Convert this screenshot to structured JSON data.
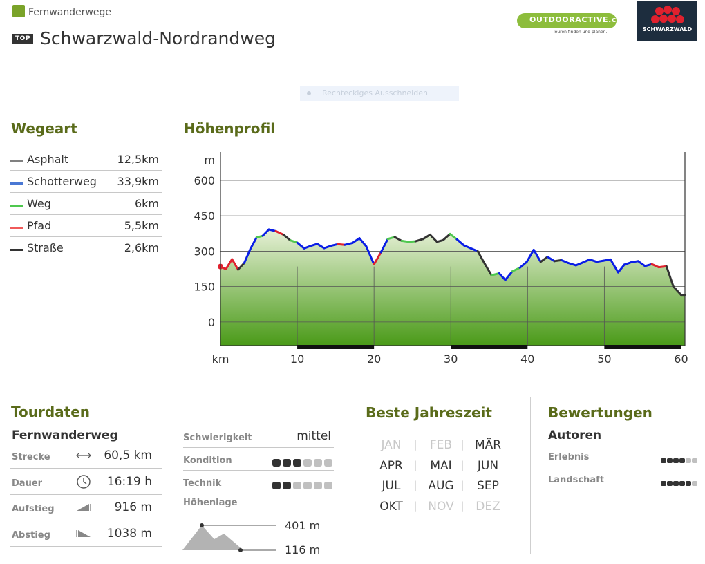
{
  "header": {
    "category": "Fernwanderwege",
    "badge": "TOP",
    "title": "Schwarzwald-Nordrandweg",
    "logo_outdooractive": "OUTDOORACTIVE.com",
    "logo_outdooractive_sub": "Touren finden und planen.",
    "logo_schwarzwald": "SCHWARZWALD",
    "ghost_toolbar": "Rechteckiges Ausschneiden"
  },
  "wegeart": {
    "title": "Wegeart",
    "items": [
      {
        "name": "Asphalt",
        "value": "12,5km",
        "color": "#808080"
      },
      {
        "name": "Schotterweg",
        "value": "33,9km",
        "color": "#4a78d4"
      },
      {
        "name": "Weg",
        "value": "6km",
        "color": "#4fc84f"
      },
      {
        "name": "Pfad",
        "value": "5,5km",
        "color": "#f05a5a"
      },
      {
        "name": "Straße",
        "value": "2,6km",
        "color": "#333333"
      }
    ]
  },
  "hoehenprofil": {
    "title": "Höhenprofil"
  },
  "chart_data": {
    "type": "area",
    "title": "Höhenprofil",
    "xlabel": "km",
    "ylabel": "m",
    "xlim": [
      0,
      60.5
    ],
    "ylim": [
      -100,
      720
    ],
    "yticks": [
      0,
      150,
      300,
      450,
      600
    ],
    "xticks": [
      10,
      20,
      30,
      40,
      50,
      60
    ],
    "grid": true,
    "fill_gradient": [
      "#e6f0d6",
      "#4a9a18"
    ],
    "x": [
      0,
      0.7,
      1.5,
      2.3,
      3.1,
      3.9,
      4.7,
      5.5,
      6.3,
      7.2,
      8.2,
      9.1,
      10,
      10.9,
      11.7,
      12.6,
      13.5,
      14.4,
      15.3,
      16.2,
      17.2,
      18.1,
      19,
      20,
      20.9,
      21.8,
      22.7,
      23.6,
      24.5,
      25.4,
      26.4,
      27.3,
      28.2,
      29,
      29.9,
      30.8,
      31.7,
      32.6,
      33.5,
      34.4,
      35.3,
      36.3,
      37.1,
      38,
      39,
      39.9,
      40.8,
      41.7,
      42.6,
      43.5,
      44.4,
      45.3,
      46.3,
      47.2,
      48.1,
      49,
      49.9,
      50.8,
      51.8,
      52.6,
      53.5,
      54.4,
      55.3,
      56.2,
      57.1,
      58.1,
      59,
      60,
      60.5
    ],
    "series": [
      {
        "values": [
          235,
          224,
          266,
          222,
          250,
          310,
          358,
          365,
          392,
          385,
          370,
          346,
          336,
          312,
          322,
          331,
          313,
          323,
          330,
          327,
          335,
          355,
          320,
          244,
          295,
          352,
          360,
          344,
          340,
          342,
          352,
          370,
          340,
          347,
          373,
          350,
          325,
          312,
          300,
          248,
          198,
          206,
          178,
          214,
          230,
          255,
          306,
          255,
          276,
          258,
          262,
          250,
          240,
          252,
          265,
          255,
          260,
          265,
          210,
          243,
          253,
          258,
          237,
          245,
          232,
          236,
          150,
          115,
          115
        ],
        "segment_colors": [
          "#e0212e",
          "#e0212e",
          "#e0212e",
          "#333333",
          "#0a1ee6",
          "#0a1ee6",
          "#4fc84f",
          "#0a1ee6",
          "#0a1ee6",
          "#e0212e",
          "#333333",
          "#4fc84f",
          "#0a1ee6",
          "#0a1ee6",
          "#0a1ee6",
          "#0a1ee6",
          "#0a1ee6",
          "#0a1ee6",
          "#e0212e",
          "#0a1ee6",
          "#0a1ee6",
          "#0a1ee6",
          "#0a1ee6",
          "#e0212e",
          "#0a1ee6",
          "#4fc84f",
          "#333333",
          "#4fc84f",
          "#4fc84f",
          "#333333",
          "#333333",
          "#333333",
          "#333333",
          "#333333",
          "#4fc84f",
          "#0a1ee6",
          "#0a1ee6",
          "#0a1ee6",
          "#333333",
          "#333333",
          "#4fc84f",
          "#0a1ee6",
          "#0a1ee6",
          "#4fc84f",
          "#0a1ee6",
          "#0a1ee6",
          "#0a1ee6",
          "#333333",
          "#0a1ee6",
          "#333333",
          "#0a1ee6",
          "#0a1ee6",
          "#0a1ee6",
          "#0a1ee6",
          "#0a1ee6",
          "#0a1ee6",
          "#0a1ee6",
          "#0a1ee6",
          "#0a1ee6",
          "#0a1ee6",
          "#0a1ee6",
          "#0a1ee6",
          "#0a1ee6",
          "#e0212e",
          "#e0212e",
          "#333333",
          "#333333",
          "#333333"
        ]
      }
    ],
    "distance_band": [
      [
        10,
        20
      ],
      [
        30,
        40
      ],
      [
        50,
        60
      ]
    ]
  },
  "tourdaten": {
    "title": "Tourdaten",
    "category": "Fernwanderweg",
    "rows": [
      {
        "label": "Strecke",
        "value": "60,5  km",
        "icon": "distance-arrows-icon"
      },
      {
        "label": "Dauer",
        "value": "16:19  h",
        "icon": "clock-icon"
      },
      {
        "label": "Aufstieg",
        "value": "916  m",
        "icon": "ascent-icon"
      },
      {
        "label": "Abstieg",
        "value": "1038  m",
        "icon": "descent-icon"
      }
    ],
    "schwierigkeit": {
      "label": "Schwierigkeit",
      "value": "mittel"
    },
    "kondition": {
      "label": "Kondition",
      "level": 3,
      "max": 6
    },
    "technik": {
      "label": "Technik",
      "level": 2,
      "max": 6
    },
    "hoehenlage": {
      "label": "Höhenlage",
      "max": "401 m",
      "min": "116 m"
    }
  },
  "season": {
    "title": "Beste Jahreszeit",
    "rows": [
      [
        {
          "m": "JAN",
          "active": false
        },
        {
          "m": "FEB",
          "active": false
        },
        {
          "m": "MÄR",
          "active": true
        }
      ],
      [
        {
          "m": "APR",
          "active": true
        },
        {
          "m": "MAI",
          "active": true
        },
        {
          "m": "JUN",
          "active": true
        }
      ],
      [
        {
          "m": "JUL",
          "active": true
        },
        {
          "m": "AUG",
          "active": true
        },
        {
          "m": "SEP",
          "active": true
        }
      ],
      [
        {
          "m": "OKT",
          "active": true
        },
        {
          "m": "NOV",
          "active": false
        },
        {
          "m": "DEZ",
          "active": false
        }
      ]
    ]
  },
  "ratings": {
    "title": "Bewertungen",
    "subtitle": "Autoren",
    "items": [
      {
        "label": "Erlebnis",
        "level": 4,
        "max": 6
      },
      {
        "label": "Landschaft",
        "level": 5,
        "max": 6
      }
    ]
  }
}
